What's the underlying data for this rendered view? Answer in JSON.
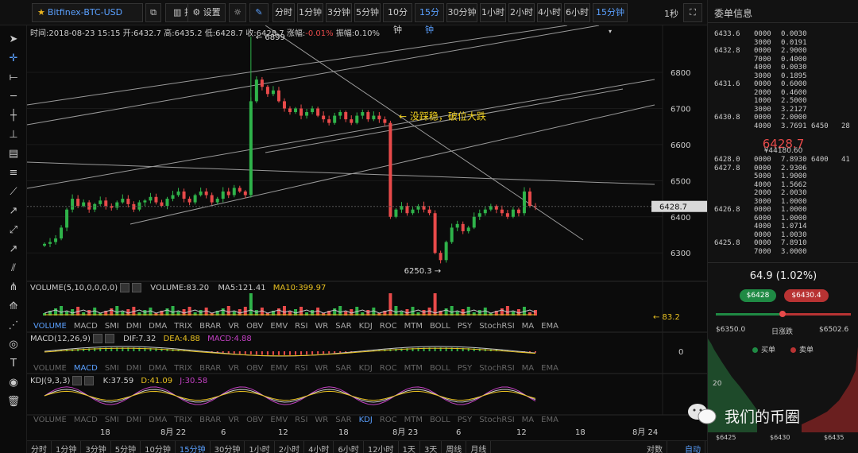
{
  "toolbar": {
    "pair": "Bitfinex-BTC-USD",
    "indicators_label": "指标",
    "settings_label": "设置",
    "timeframes": [
      "分时",
      "1分钟",
      "3分钟",
      "5分钟",
      "10分钟",
      "15分钟",
      "30分钟",
      "1小时",
      "2小时",
      "4小时",
      "6小时"
    ],
    "timeframe_dropdown": "15分钟",
    "refresh": "1秒"
  },
  "info": {
    "time": "时间:2018-08-23 15:15",
    "open": "开:6432.7",
    "high": "高:6435.2",
    "low": "低:6428.7",
    "close": "收:6428.7",
    "change": "-0.01%",
    "change_label": "涨幅:",
    "amplitude": "振幅:0.10%"
  },
  "annotations": {
    "high_mark": "6899",
    "low_mark": "6250.3",
    "note": "没踩稳，破位大跌",
    "current_price_tag": "6428.7"
  },
  "indicators": {
    "volume_label": "VOLUME(5,10,0,0,0,0)",
    "volume_value": "VOLUME:83.20",
    "ma5": "MA5:121.41",
    "ma10": "MA10:399.97",
    "volume_tag": "83.2",
    "macd_label": "MACD(12,26,9)",
    "dif": "DIF:7.32",
    "dea": "DEA:4.88",
    "macd": "MACD:4.88",
    "macd_zero": "0",
    "kdj_label": "KDJ(9,3,3)",
    "k": "K:37.59",
    "d": "D:41.09",
    "j": "J:30.58",
    "tabs": [
      "VOLUME",
      "MACD",
      "SMI",
      "DMI",
      "DMA",
      "TRIX",
      "BRAR",
      "VR",
      "OBV",
      "EMV",
      "RSI",
      "WR",
      "SAR",
      "KDJ",
      "ROC",
      "MTM",
      "BOLL",
      "PSY",
      "StochRSI",
      "MA",
      "EMA"
    ]
  },
  "chart_data": {
    "type": "candlestick",
    "title": "Bitfinex-BTC-USD",
    "interval": "15分钟",
    "y_ticks": [
      6300,
      6400,
      6500,
      6600,
      6700,
      6800
    ],
    "ylim": [
      6230,
      6930
    ],
    "x_ticks": [
      "18",
      "8月 22",
      "6",
      "12",
      "18",
      "8月 23",
      "6",
      "12",
      "18",
      "8月 24"
    ],
    "high": 6899,
    "low": 6250.3,
    "last": 6428.7,
    "series": [
      {
        "name": "BTC-USD close (approx, 15m)",
        "values": [
          6325,
          6330,
          6340,
          6370,
          6420,
          6450,
          6430,
          6440,
          6420,
          6435,
          6445,
          6430,
          6425,
          6440,
          6450,
          6435,
          6420,
          6440,
          6445,
          6455,
          6440,
          6430,
          6450,
          6460,
          6470,
          6450,
          6440,
          6460,
          6470,
          6460,
          6440,
          6450,
          6470,
          6460,
          6480,
          6470,
          6460,
          6720,
          6780,
          6760,
          6740,
          6750,
          6720,
          6700,
          6690,
          6700,
          6680,
          6690,
          6700,
          6680,
          6670,
          6660,
          6680,
          6690,
          6670,
          6660,
          6680,
          6690,
          6670,
          6680,
          6670,
          6660,
          6400,
          6420,
          6430,
          6410,
          6420,
          6430,
          6420,
          6410,
          6300,
          6280,
          6330,
          6370,
          6380,
          6360,
          6370,
          6400,
          6410,
          6420,
          6430,
          6420,
          6410,
          6400,
          6420,
          6410,
          6470,
          6430,
          6428.7
        ]
      }
    ]
  },
  "orderbook": {
    "title": "委单信息",
    "asks": [
      {
        "price": "6433.6",
        "qty": "0000",
        "amt": "0.0030",
        "acc": "",
        "lvl": ""
      },
      {
        "price": "",
        "qty": "3000",
        "amt": "0.0191",
        "acc": "",
        "lvl": ""
      },
      {
        "price": "6432.8",
        "qty": "0000",
        "amt": "2.9000",
        "acc": "",
        "lvl": ""
      },
      {
        "price": "",
        "qty": "7000",
        "amt": "0.4000",
        "acc": "",
        "lvl": ""
      },
      {
        "price": "",
        "qty": "4000",
        "amt": "0.0030",
        "acc": "",
        "lvl": ""
      },
      {
        "price": "",
        "qty": "3000",
        "amt": "0.1895",
        "acc": "",
        "lvl": ""
      },
      {
        "price": "6431.6",
        "qty": "0000",
        "amt": "0.6000",
        "acc": "",
        "lvl": ""
      },
      {
        "price": "",
        "qty": "2000",
        "amt": "0.4600",
        "acc": "",
        "lvl": ""
      },
      {
        "price": "",
        "qty": "1000",
        "amt": "2.5000",
        "acc": "",
        "lvl": ""
      },
      {
        "price": "",
        "qty": "3000",
        "amt": "3.2127",
        "acc": "",
        "lvl": ""
      },
      {
        "price": "6430.8",
        "qty": "0000",
        "amt": "2.0000",
        "acc": "",
        "lvl": ""
      },
      {
        "price": "",
        "qty": "4000",
        "amt": "3.7691",
        "acc": "6450",
        "lvl": "28"
      }
    ],
    "last_price": "6428.7",
    "last_price_cny": "¥44180.60",
    "bids": [
      {
        "price": "6428.0",
        "qty": "0000",
        "amt": "7.8930",
        "acc": "6400",
        "lvl": "41"
      },
      {
        "price": "6427.8",
        "qty": "0000",
        "amt": "2.9306",
        "acc": "",
        "lvl": ""
      },
      {
        "price": "",
        "qty": "5000",
        "amt": "1.9000",
        "acc": "",
        "lvl": ""
      },
      {
        "price": "",
        "qty": "4000",
        "amt": "1.5662",
        "acc": "",
        "lvl": ""
      },
      {
        "price": "",
        "qty": "2000",
        "amt": "2.0030",
        "acc": "",
        "lvl": ""
      },
      {
        "price": "",
        "qty": "3000",
        "amt": "1.0000",
        "acc": "",
        "lvl": ""
      },
      {
        "price": "6426.8",
        "qty": "0000",
        "amt": "1.0000",
        "acc": "",
        "lvl": ""
      },
      {
        "price": "",
        "qty": "6000",
        "amt": "1.0000",
        "acc": "",
        "lvl": ""
      },
      {
        "price": "",
        "qty": "4000",
        "amt": "1.0714",
        "acc": "",
        "lvl": ""
      },
      {
        "price": "",
        "qty": "0000",
        "amt": "1.0030",
        "acc": "",
        "lvl": ""
      },
      {
        "price": "6425.8",
        "qty": "0000",
        "amt": "7.8910",
        "acc": "",
        "lvl": ""
      },
      {
        "price": "",
        "qty": "7000",
        "amt": "3.0000",
        "acc": "",
        "lvl": ""
      }
    ]
  },
  "stats": {
    "change": "64.9 (1.02%)",
    "buy_price": "$6428",
    "sell_price": "$6430.4",
    "range_low": "$6350.0",
    "range_label": "日涨跌",
    "range_high": "$6502.6",
    "buy_legend": "买单",
    "sell_legend": "卖单",
    "depth_y_tick": "20",
    "depth_x_ticks": [
      "$6425",
      "$6430",
      "$6435"
    ]
  },
  "bottom": {
    "timeframes": [
      "分时",
      "1分钟",
      "3分钟",
      "5分钟",
      "10分钟",
      "15分钟",
      "30分钟",
      "1小时",
      "2小时",
      "4小时",
      "6小时",
      "12小时",
      "1天",
      "3天",
      "周线",
      "月线"
    ],
    "active": "15分钟",
    "log_scale": "对数",
    "auto": "自动"
  },
  "watermark": "我们的币圈",
  "colors": {
    "up": "#2fb34a",
    "down": "#e84a4a",
    "accent": "#5aa0ff",
    "bg": "#0b0b0b"
  }
}
